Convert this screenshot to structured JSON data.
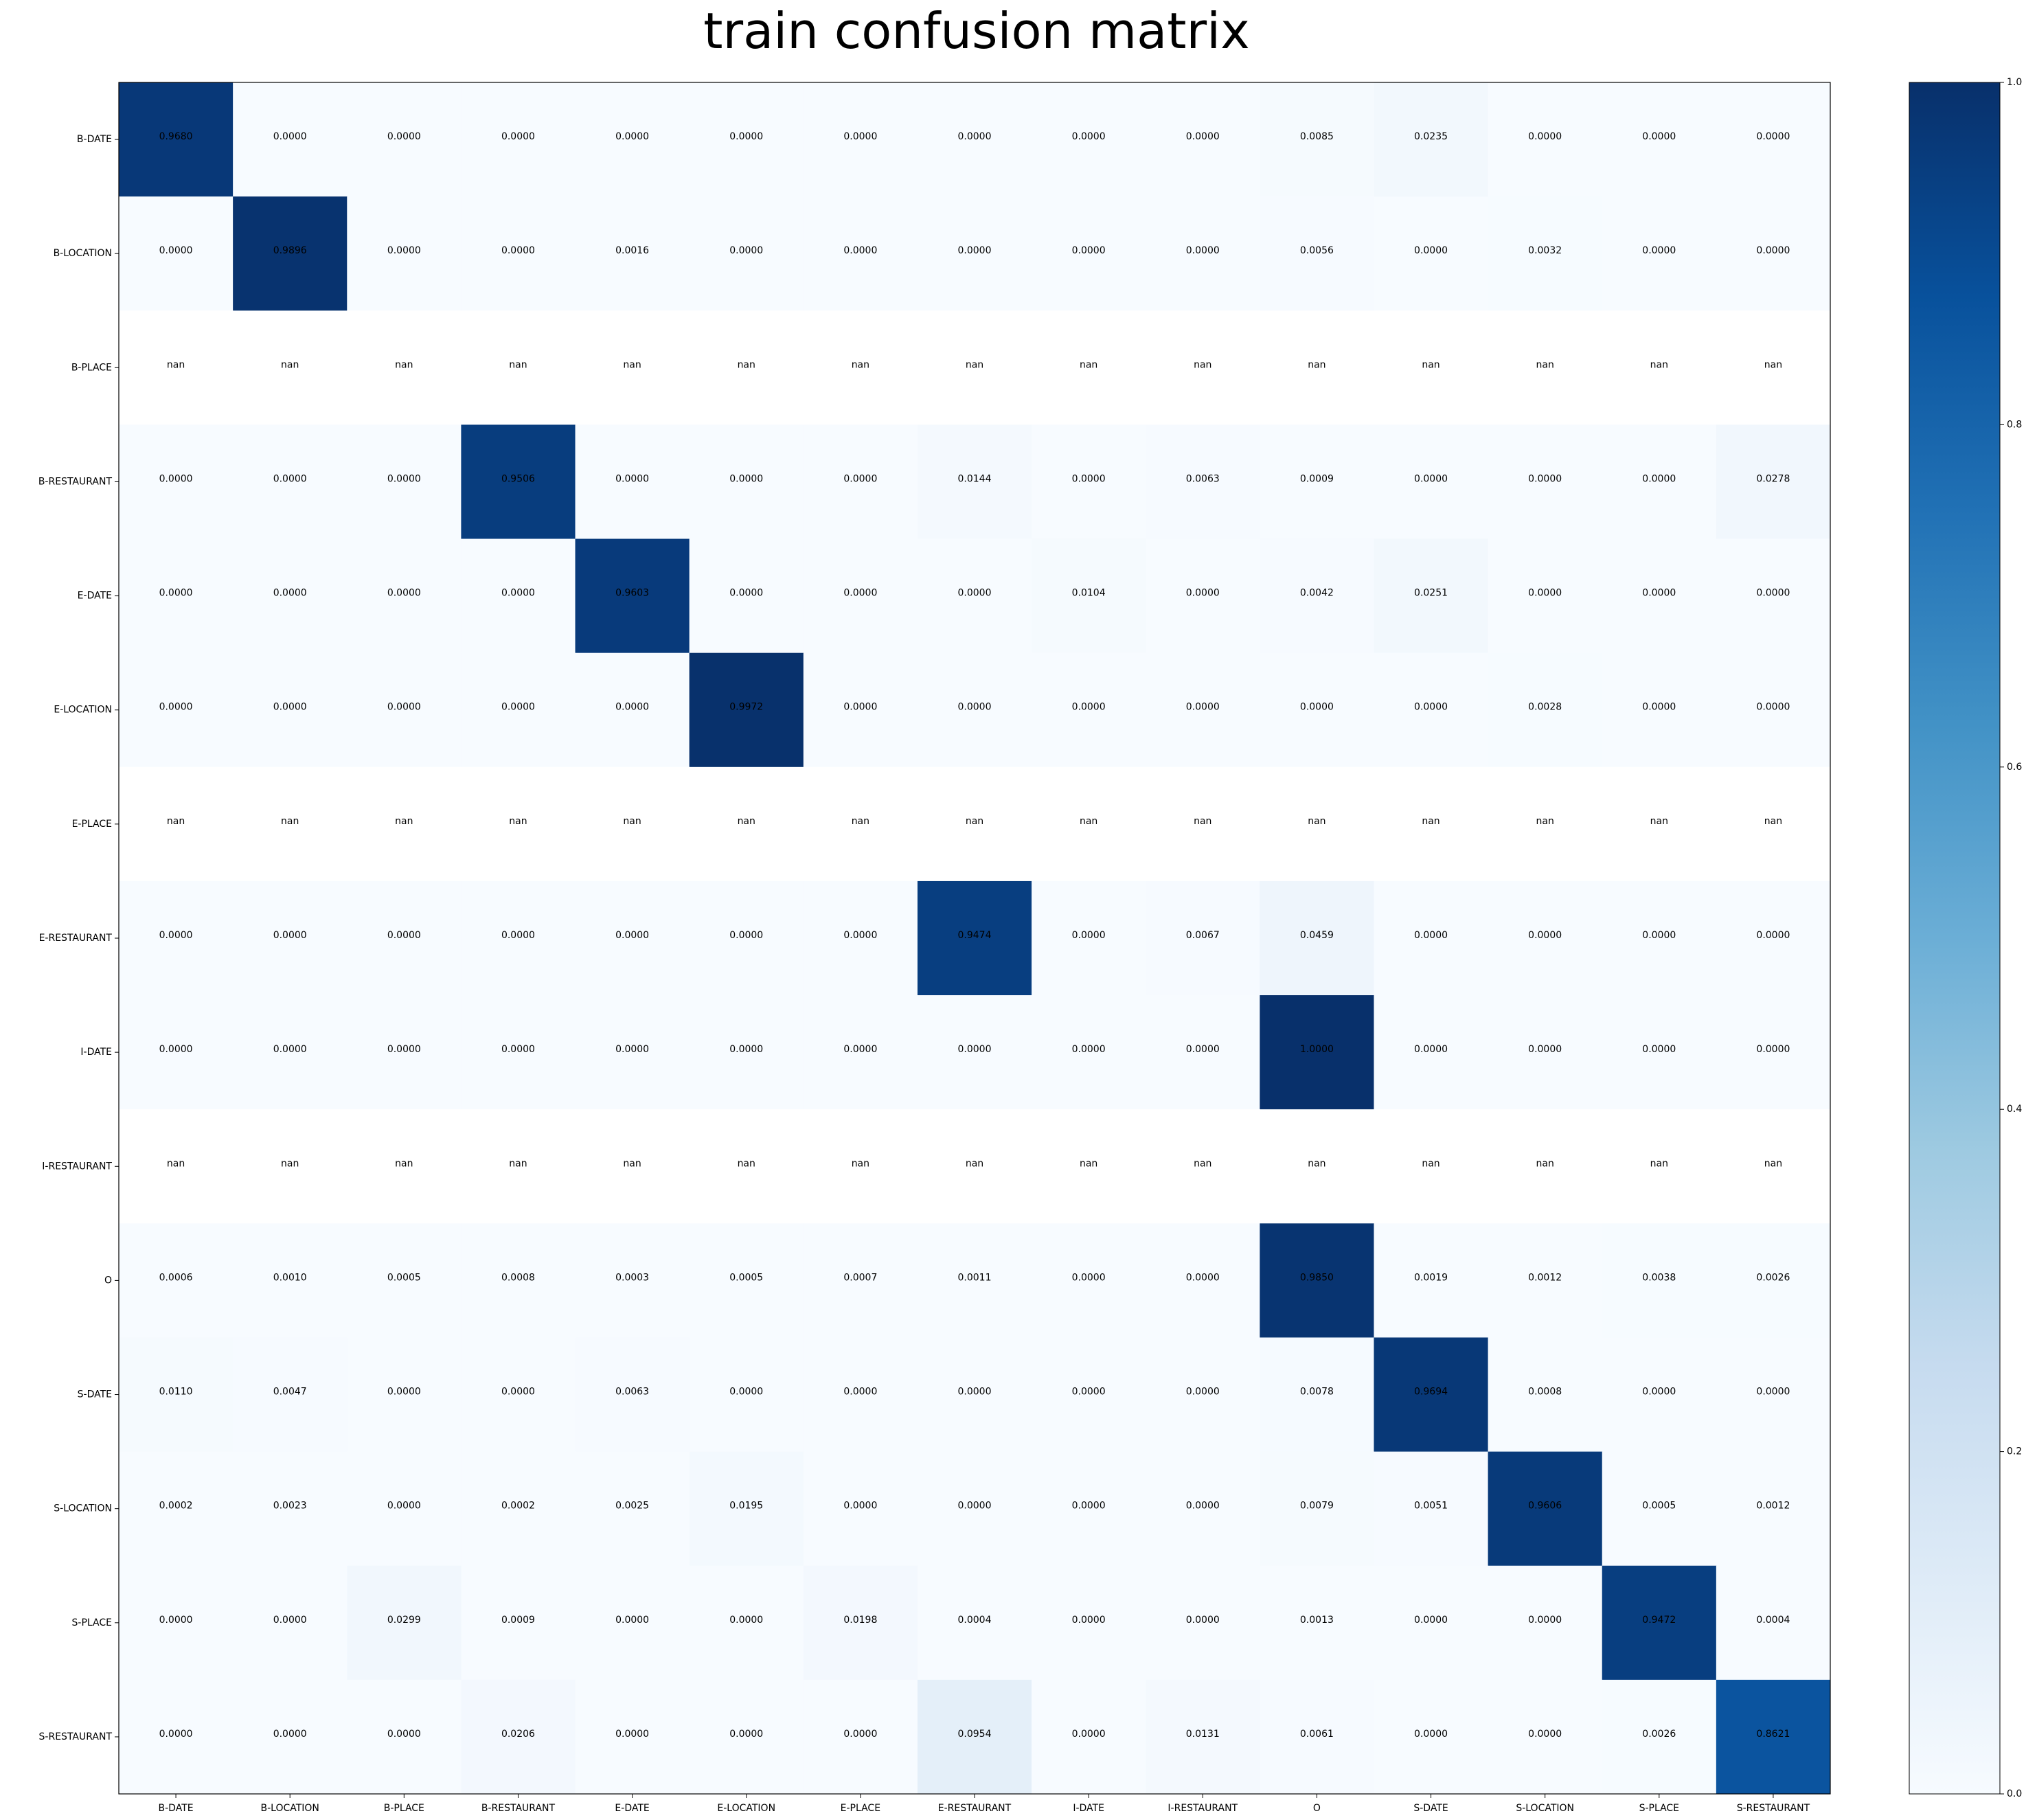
{
  "chart_data": {
    "type": "heatmap",
    "title": "train confusion matrix",
    "x_categories": [
      "B-DATE",
      "B-LOCATION",
      "B-PLACE",
      "B-RESTAURANT",
      "E-DATE",
      "E-LOCATION",
      "E-PLACE",
      "E-RESTAURANT",
      "I-DATE",
      "I-RESTAURANT",
      "O",
      "S-DATE",
      "S-LOCATION",
      "S-PLACE",
      "S-RESTAURANT"
    ],
    "y_categories": [
      "B-DATE",
      "B-LOCATION",
      "B-PLACE",
      "B-RESTAURANT",
      "E-DATE",
      "E-LOCATION",
      "E-PLACE",
      "E-RESTAURANT",
      "I-DATE",
      "I-RESTAURANT",
      "O",
      "S-DATE",
      "S-LOCATION",
      "S-PLACE",
      "S-RESTAURANT"
    ],
    "values": [
      [
        "0.9680",
        "0.0000",
        "0.0000",
        "0.0000",
        "0.0000",
        "0.0000",
        "0.0000",
        "0.0000",
        "0.0000",
        "0.0000",
        "0.0085",
        "0.0235",
        "0.0000",
        "0.0000",
        "0.0000"
      ],
      [
        "0.0000",
        "0.9896",
        "0.0000",
        "0.0000",
        "0.0016",
        "0.0000",
        "0.0000",
        "0.0000",
        "0.0000",
        "0.0000",
        "0.0056",
        "0.0000",
        "0.0032",
        "0.0000",
        "0.0000"
      ],
      [
        "nan",
        "nan",
        "nan",
        "nan",
        "nan",
        "nan",
        "nan",
        "nan",
        "nan",
        "nan",
        "nan",
        "nan",
        "nan",
        "nan",
        "nan"
      ],
      [
        "0.0000",
        "0.0000",
        "0.0000",
        "0.9506",
        "0.0000",
        "0.0000",
        "0.0000",
        "0.0144",
        "0.0000",
        "0.0063",
        "0.0009",
        "0.0000",
        "0.0000",
        "0.0000",
        "0.0278"
      ],
      [
        "0.0000",
        "0.0000",
        "0.0000",
        "0.0000",
        "0.9603",
        "0.0000",
        "0.0000",
        "0.0000",
        "0.0104",
        "0.0000",
        "0.0042",
        "0.0251",
        "0.0000",
        "0.0000",
        "0.0000"
      ],
      [
        "0.0000",
        "0.0000",
        "0.0000",
        "0.0000",
        "0.0000",
        "0.9972",
        "0.0000",
        "0.0000",
        "0.0000",
        "0.0000",
        "0.0000",
        "0.0000",
        "0.0028",
        "0.0000",
        "0.0000"
      ],
      [
        "nan",
        "nan",
        "nan",
        "nan",
        "nan",
        "nan",
        "nan",
        "nan",
        "nan",
        "nan",
        "nan",
        "nan",
        "nan",
        "nan",
        "nan"
      ],
      [
        "0.0000",
        "0.0000",
        "0.0000",
        "0.0000",
        "0.0000",
        "0.0000",
        "0.0000",
        "0.9474",
        "0.0000",
        "0.0067",
        "0.0459",
        "0.0000",
        "0.0000",
        "0.0000",
        "0.0000"
      ],
      [
        "0.0000",
        "0.0000",
        "0.0000",
        "0.0000",
        "0.0000",
        "0.0000",
        "0.0000",
        "0.0000",
        "0.0000",
        "0.0000",
        "1.0000",
        "0.0000",
        "0.0000",
        "0.0000",
        "0.0000"
      ],
      [
        "nan",
        "nan",
        "nan",
        "nan",
        "nan",
        "nan",
        "nan",
        "nan",
        "nan",
        "nan",
        "nan",
        "nan",
        "nan",
        "nan",
        "nan"
      ],
      [
        "0.0006",
        "0.0010",
        "0.0005",
        "0.0008",
        "0.0003",
        "0.0005",
        "0.0007",
        "0.0011",
        "0.0000",
        "0.0000",
        "0.9850",
        "0.0019",
        "0.0012",
        "0.0038",
        "0.0026"
      ],
      [
        "0.0110",
        "0.0047",
        "0.0000",
        "0.0000",
        "0.0063",
        "0.0000",
        "0.0000",
        "0.0000",
        "0.0000",
        "0.0000",
        "0.0078",
        "0.9694",
        "0.0008",
        "0.0000",
        "0.0000"
      ],
      [
        "0.0002",
        "0.0023",
        "0.0000",
        "0.0002",
        "0.0025",
        "0.0195",
        "0.0000",
        "0.0000",
        "0.0000",
        "0.0000",
        "0.0079",
        "0.0051",
        "0.9606",
        "0.0005",
        "0.0012"
      ],
      [
        "0.0000",
        "0.0000",
        "0.0299",
        "0.0009",
        "0.0000",
        "0.0000",
        "0.0198",
        "0.0004",
        "0.0000",
        "0.0000",
        "0.0013",
        "0.0000",
        "0.0000",
        "0.9472",
        "0.0004"
      ],
      [
        "0.0000",
        "0.0000",
        "0.0000",
        "0.0206",
        "0.0000",
        "0.0000",
        "0.0000",
        "0.0954",
        "0.0000",
        "0.0131",
        "0.0061",
        "0.0000",
        "0.0000",
        "0.0026",
        "0.8621"
      ]
    ],
    "colormap": "Blues",
    "vmin": 0.0,
    "vmax": 1.0,
    "colorbar_ticks": [
      "0.0",
      "0.2",
      "0.4",
      "0.6",
      "0.8",
      "1.0"
    ],
    "grid": false,
    "text_color": "#000000"
  }
}
